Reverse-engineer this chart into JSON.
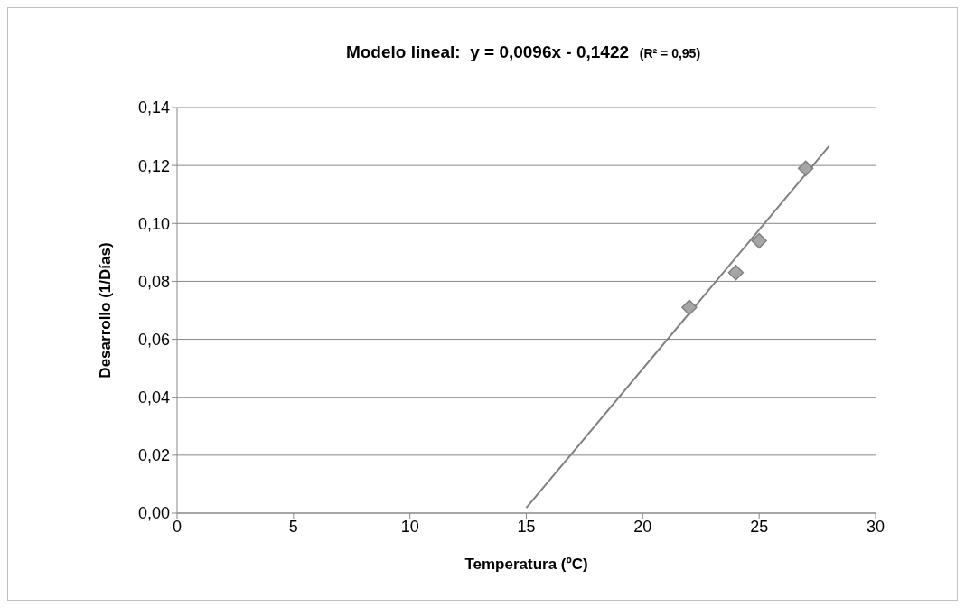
{
  "chart_data": {
    "type": "scatter",
    "title": "Modelo lineal:  y = 0,0096x - 0,1422",
    "subtitle": "(R² = 0,95)",
    "xlabel": "Temperatura (ºC)",
    "ylabel": "Desarrollo (1/Días)",
    "series": [
      {
        "color": "#a6a6a6",
        "marker": "diamond",
        "x": [
          22,
          24,
          25,
          27
        ],
        "values": [
          0.071,
          0.083,
          0.094,
          0.119
        ]
      },
      {
        "type": "line",
        "color": "#808080",
        "marker": "none",
        "line_style": "solid",
        "x": [
          15,
          28
        ],
        "values": [
          0.0018,
          0.1266
        ]
      }
    ],
    "xlim": [
      0,
      30
    ],
    "xticks": [
      0,
      5,
      10,
      15,
      20,
      25,
      30
    ],
    "ylim": [
      0,
      0.14
    ],
    "yticks": [
      {
        "value": 0,
        "label": "0,00"
      },
      {
        "value": 0.02,
        "label": "0,02"
      },
      {
        "value": 0.04,
        "label": "0,04"
      },
      {
        "value": 0.06,
        "label": "0,06"
      },
      {
        "value": 0.08,
        "label": "0,08"
      },
      {
        "value": 0.1,
        "label": "0,10"
      },
      {
        "value": 0.12,
        "label": "0,12"
      },
      {
        "value": 0.14,
        "label": "0,14"
      }
    ],
    "grid": "y",
    "legend": false
  }
}
